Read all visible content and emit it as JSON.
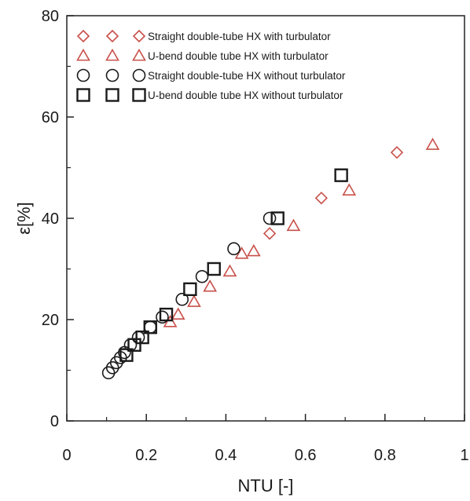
{
  "chart_data": {
    "type": "scatter",
    "title": "",
    "xlabel": "NTU [-]",
    "ylabel": "ε[%]",
    "xlim": [
      0,
      1
    ],
    "ylim": [
      0,
      80
    ],
    "x_ticks": [
      0,
      0.2,
      0.4,
      0.6,
      0.8,
      1
    ],
    "x_tick_labels": [
      "0",
      "0.2",
      "0.4",
      "0.6",
      "0.8",
      "1"
    ],
    "y_ticks": [
      0,
      20,
      40,
      60,
      80
    ],
    "y_tick_labels": [
      "0",
      "20",
      "40",
      "60",
      "80"
    ],
    "grid": false,
    "legend_position": "top-left",
    "series": [
      {
        "name": "Straight double-tube HX with turbulator",
        "marker": "diamond",
        "color": "#c8504a",
        "x": [
          0.51,
          0.64,
          0.83
        ],
        "y": [
          37,
          44,
          53
        ]
      },
      {
        "name": "U-bend double tube HX with turbulator",
        "marker": "triangle",
        "color": "#c8504a",
        "x": [
          0.26,
          0.28,
          0.32,
          0.36,
          0.41,
          0.44,
          0.47,
          0.57,
          0.71,
          0.92
        ],
        "y": [
          19.5,
          21,
          23.5,
          26.5,
          29.5,
          33,
          33.5,
          38.5,
          45.5,
          54.5
        ]
      },
      {
        "name": "Straight double-tube HX without turbulator",
        "marker": "circle",
        "color": "#1a1a1a",
        "x": [
          0.105,
          0.115,
          0.125,
          0.135,
          0.145,
          0.16,
          0.18,
          0.21,
          0.24,
          0.29,
          0.34,
          0.42,
          0.51
        ],
        "y": [
          9.5,
          10.5,
          11.5,
          12.5,
          13.5,
          15,
          16.5,
          18.5,
          20.5,
          24,
          28.5,
          34,
          40
        ]
      },
      {
        "name": "U-bend double tube HX without turbulator",
        "marker": "square",
        "color": "#1a1a1a",
        "x": [
          0.15,
          0.17,
          0.19,
          0.21,
          0.25,
          0.31,
          0.37,
          0.53,
          0.69
        ],
        "y": [
          13,
          15,
          16.5,
          18.5,
          21,
          26,
          30,
          40,
          48.5
        ]
      }
    ]
  }
}
